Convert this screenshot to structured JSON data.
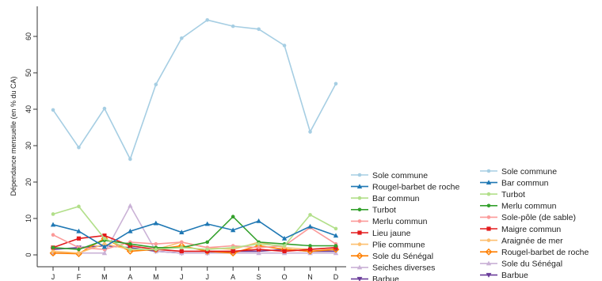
{
  "chart_data": {
    "type": "line",
    "title": "",
    "xlabel": "",
    "ylabel": "Dépendance mensuelle (en % du CA)",
    "categories": [
      "J",
      "F",
      "M",
      "A",
      "M",
      "J",
      "J",
      "A",
      "S",
      "O",
      "N",
      "D"
    ],
    "yticks": [
      0,
      10,
      20,
      30,
      40,
      50,
      60
    ],
    "ylim": [
      0,
      66
    ],
    "grid": false,
    "legend_position": "bottom-right, two columns",
    "series": [
      {
        "name": "Sole commune",
        "color": "#a6cee3",
        "marker": "circle",
        "values": [
          39.8,
          29.5,
          40.2,
          26.3,
          46.8,
          59.5,
          64.5,
          62.8,
          62.0,
          57.5,
          33.8,
          47.0
        ]
      },
      {
        "name": "Rougel-barbet de roche",
        "color": "#1f78b4",
        "marker": "triangle",
        "values": [
          8.3,
          6.5,
          2.2,
          6.5,
          8.7,
          6.2,
          8.5,
          6.8,
          9.3,
          4.5,
          7.8,
          5.3
        ]
      },
      {
        "name": "Bar commun",
        "color": "#b2df8a",
        "marker": "circle",
        "values": [
          11.2,
          13.3,
          4.5,
          1.5,
          1.5,
          2.0,
          1.5,
          2.0,
          3.0,
          2.5,
          11.0,
          7.2
        ]
      },
      {
        "name": "Turbot",
        "color": "#33a02c",
        "marker": "circle",
        "values": [
          2.0,
          1.5,
          4.0,
          3.0,
          2.0,
          2.0,
          3.5,
          10.5,
          3.5,
          3.0,
          2.5,
          2.5
        ]
      },
      {
        "name": "Merlu commun",
        "color": "#fb9a99",
        "marker": "circle",
        "values": [
          5.5,
          2.0,
          1.5,
          3.5,
          3.0,
          3.5,
          2.0,
          2.5,
          2.0,
          2.5,
          7.5,
          3.0
        ]
      },
      {
        "name": "Lieu jaune",
        "color": "#e31a1c",
        "marker": "square",
        "values": [
          2.0,
          4.5,
          5.3,
          2.5,
          1.5,
          1.0,
          1.0,
          1.0,
          1.5,
          1.0,
          1.5,
          2.0
        ]
      },
      {
        "name": "Plie commune",
        "color": "#fdbf6f",
        "marker": "circle",
        "values": [
          1.0,
          0.5,
          3.0,
          1.5,
          1.5,
          3.5,
          2.0,
          1.5,
          3.5,
          2.0,
          1.5,
          2.0
        ]
      },
      {
        "name": "Sole du Sénégal",
        "color": "#ff7f00",
        "marker": "diamond",
        "values": [
          0.5,
          0.3,
          4.5,
          1.0,
          1.5,
          2.5,
          1.0,
          0.5,
          2.5,
          1.5,
          1.0,
          1.5
        ]
      },
      {
        "name": "Seiches diverses",
        "color": "#cab2d6",
        "marker": "triangle",
        "values": [
          0.5,
          0.5,
          0.5,
          13.5,
          1.0,
          0.5,
          0.5,
          0.5,
          0.5,
          0.5,
          0.5,
          0.5
        ]
      },
      {
        "name": "Barbue",
        "color": "#6a3d9a",
        "marker": "triangle-down",
        "values": [
          1.5,
          2.0,
          2.5,
          2.0,
          1.0,
          0.5,
          0.5,
          1.0,
          1.0,
          1.5,
          1.0,
          1.0
        ]
      }
    ],
    "legend2": [
      {
        "name": "Sole commune",
        "color": "#a6cee3",
        "marker": "circle"
      },
      {
        "name": "Bar commun",
        "color": "#1f78b4",
        "marker": "triangle"
      },
      {
        "name": "Turbot",
        "color": "#b2df8a",
        "marker": "circle"
      },
      {
        "name": "Merlu commun",
        "color": "#33a02c",
        "marker": "circle"
      },
      {
        "name": "Sole-pôle (de sable)",
        "color": "#fb9a99",
        "marker": "circle"
      },
      {
        "name": "Maigre commun",
        "color": "#e31a1c",
        "marker": "square"
      },
      {
        "name": "Araignée de mer",
        "color": "#fdbf6f",
        "marker": "circle"
      },
      {
        "name": "Rougel-barbet de roche",
        "color": "#ff7f00",
        "marker": "diamond"
      },
      {
        "name": "Sole du Sénégal",
        "color": "#cab2d6",
        "marker": "triangle"
      },
      {
        "name": "Barbue",
        "color": "#6a3d9a",
        "marker": "triangle-down"
      }
    ]
  }
}
